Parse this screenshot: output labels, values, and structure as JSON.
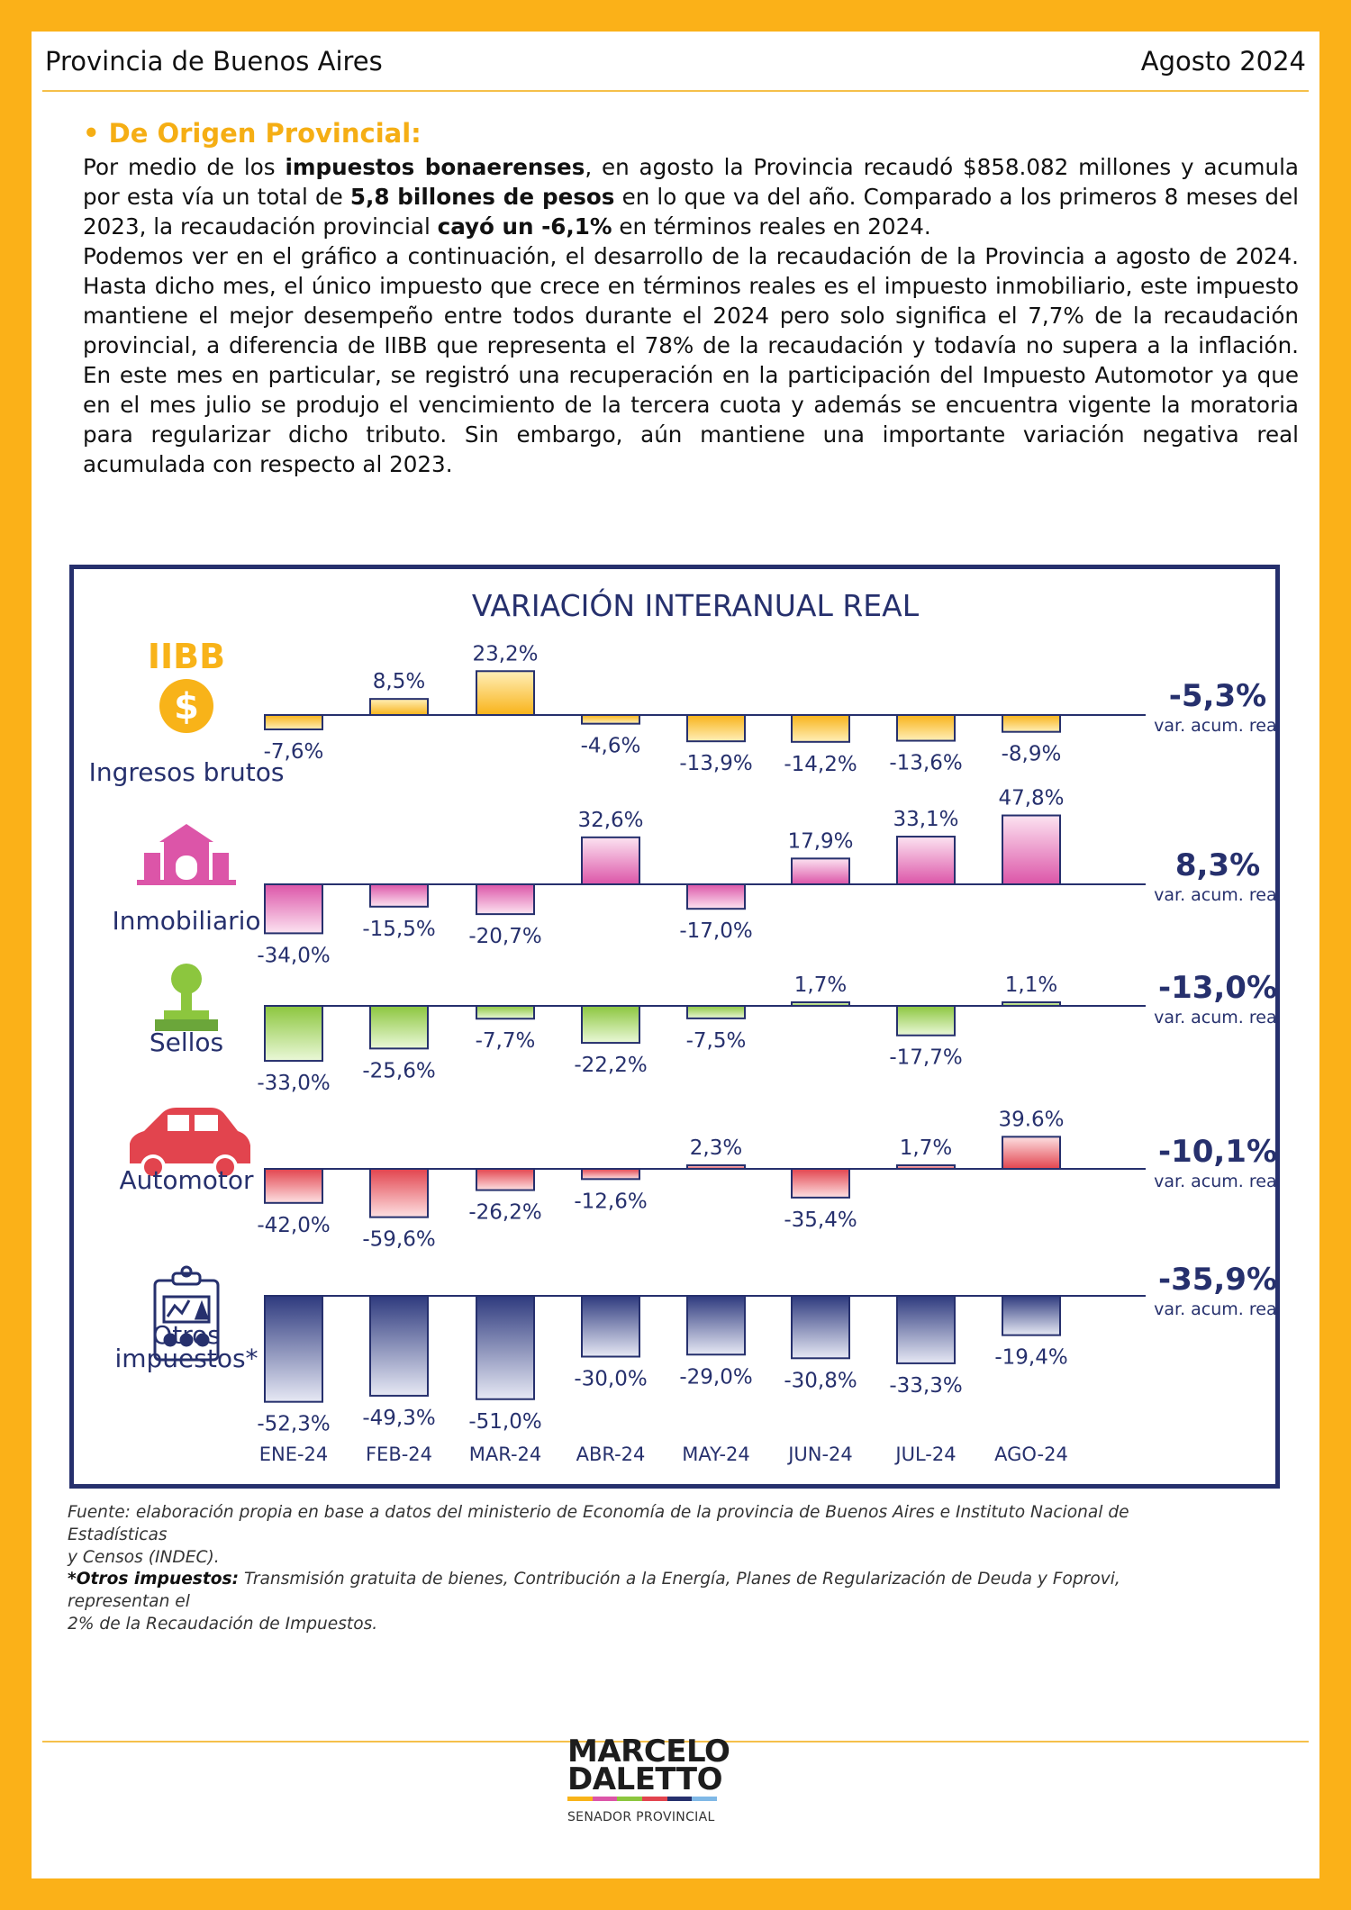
{
  "header": {
    "left": "Provincia de Buenos Aires",
    "right": "Agosto 2024"
  },
  "intro": {
    "heading": "• De Origen Provincial:",
    "p1_a": "Por medio de los ",
    "p1_b": "impuestos bonaerenses",
    "p1_c": ", en agosto la Provincia recaudó $858.082 millones y acumula por esta vía un total de ",
    "p1_d": "5,8 billones de pesos",
    "p1_e": " en lo que va del año. Comparado a los primeros 8 meses del 2023, la recaudación provincial ",
    "p1_f": "cayó un -6,1%",
    "p1_g": " en términos reales en 2024.",
    "p2": "Podemos ver en el gráfico a continuación, el desarrollo de la recaudación de la Provincia a agosto de 2024. Hasta dicho mes, el único impuesto que crece en términos reales es el impuesto inmobiliario, este impuesto mantiene el mejor desempeño entre todos durante el 2024 pero solo significa el 7,7% de la recaudación provincial, a diferencia de IIBB que representa el 78% de la recaudación y todavía no supera a la inflación. En este mes en particular, se registró una recuperación en la participación del Impuesto Automotor ya que en el mes julio se produjo el vencimiento de la tercera cuota y además se encuentra vigente la moratoria para regularizar dicho tributo. Sin embargo, aún mantiene una importante variación negativa real acumulada con respecto al 2023."
  },
  "chart_data": {
    "type": "bar",
    "title": "VARIACIÓN INTERANUAL REAL",
    "categories": [
      "ENE-24",
      "FEB-24",
      "MAR-24",
      "ABR-24",
      "MAY-24",
      "JUN-24",
      "JUL-24",
      "AGO-24"
    ],
    "acum_label": "var. acum. real",
    "series": [
      {
        "name": "Ingresos brutos",
        "badge": "IIBB",
        "icon": "dollar-coin-icon",
        "values": [
          -7.6,
          8.5,
          23.2,
          -4.6,
          -13.9,
          -14.2,
          -13.6,
          -8.9
        ],
        "labels": [
          "-7,6%",
          "8,5%",
          "23,2%",
          "-4,6%",
          "-13,9%",
          "-14,2%",
          "-13,6%",
          "-8,9%"
        ],
        "acum": "-5,3%",
        "color_top": "#FFEFB8",
        "color_bottom": "#F8B319"
      },
      {
        "name": "Inmobiliario",
        "icon": "house-icon",
        "values": [
          -34.0,
          -15.5,
          -20.7,
          32.6,
          -17.0,
          17.9,
          33.1,
          47.8
        ],
        "labels": [
          "-34,0%",
          "-15,5%",
          "-20,7%",
          "32,6%",
          "-17,0%",
          "17,9%",
          "33,1%",
          "47,8%"
        ],
        "acum": "8,3%",
        "color_top": "#FCE3F1",
        "color_bottom": "#DC55A8"
      },
      {
        "name": "Sellos",
        "icon": "stamp-icon",
        "values": [
          -33.0,
          -25.6,
          -7.7,
          -22.2,
          -7.5,
          1.7,
          -17.7,
          1.1
        ],
        "labels": [
          "-33,0%",
          "-25,6%",
          "-7,7%",
          "-22,2%",
          "-7,5%",
          "1,7%",
          "-17,7%",
          "1,1%"
        ],
        "acum": "-13,0%",
        "color_top": "#EAF8D8",
        "color_bottom": "#8CC63E"
      },
      {
        "name": "Automotor",
        "icon": "car-icon",
        "values": [
          -42.0,
          -59.6,
          -26.2,
          -12.6,
          2.3,
          -35.4,
          1.7,
          39.6
        ],
        "labels": [
          "-42,0%",
          "-59,6%",
          "-26,2%",
          "-12,6%",
          "2,3%",
          "-35,4%",
          "1,7%",
          "39.6%"
        ],
        "acum": "-10,1%",
        "color_top": "#FDE0E2",
        "color_bottom": "#E2444E"
      },
      {
        "name": "Otros impuestos*",
        "icon": "report-clipboard-icon",
        "values": [
          -52.3,
          -49.3,
          -51.0,
          -30.0,
          -29.0,
          -30.8,
          -33.3,
          -19.4
        ],
        "labels": [
          "-52,3%",
          "-49,3%",
          "-51,0%",
          "-30,0%",
          "-29,0%",
          "-30,8%",
          "-33,3%",
          "-19,4%"
        ],
        "acum": "-35,9%",
        "color_top": "#E6E8F4",
        "color_bottom": "#2E3A7E"
      }
    ]
  },
  "source": {
    "line1": "Fuente: elaboración propia en base a datos del ministerio de Economía de la provincia de Buenos Aires e Instituto Nacional de Estadísticas",
    "line2": " y Censos (INDEC).",
    "note_label": "*Otros impuestos:",
    "note_text": " Transmisión gratuita de bienes, Contribución a la Energía, Planes de Regularización de Deuda y Foprovi, representan el",
    "note_line2": "2% de la Recaudación de Impuestos."
  },
  "logo": {
    "line1": "MARCELO",
    "line2": "DALETTO",
    "sub": "SENADOR PROVINCIAL"
  },
  "colors": {
    "frame": "#FBB118",
    "navy": "#26306D",
    "heading": "#F5AE14"
  }
}
